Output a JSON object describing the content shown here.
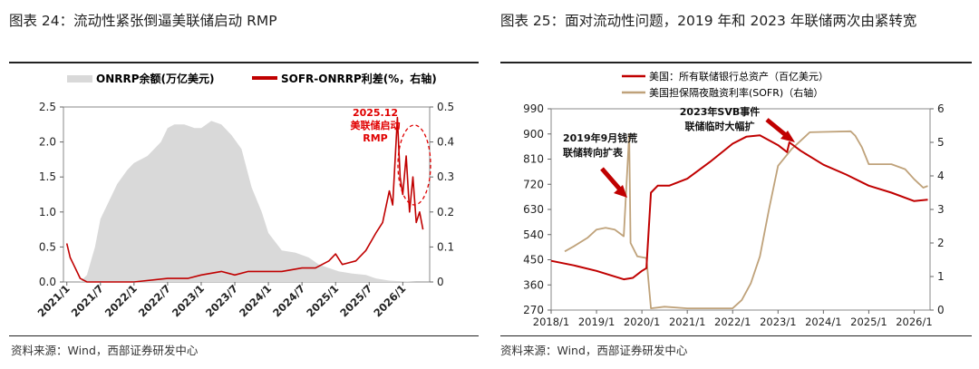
{
  "left": {
    "title": "图表 24：流动性紧张倒逼美联储启动 RMP",
    "source": "资料来源：Wind，西部证券研发中心",
    "chart_data": {
      "type": "area",
      "x_ticks": [
        "2021/1",
        "2021/7",
        "2022/1",
        "2022/7",
        "2023/1",
        "2023/7",
        "2024/1",
        "2024/7",
        "2025/1",
        "2025/7",
        "2026/1"
      ],
      "y_left_ticks": [
        "0.0",
        "0.5",
        "1.0",
        "1.5",
        "2.0",
        "2.5"
      ],
      "y_left_range": [
        0,
        2.5
      ],
      "y_right_ticks": [
        "0",
        "0.1",
        "0.2",
        "0.3",
        "0.4",
        "0.5"
      ],
      "y_right_range": [
        0,
        0.5
      ],
      "legend_position": "top",
      "annotation": [
        "2025.12",
        "美联储启动",
        "RMP"
      ],
      "series": [
        {
          "name": "ONRRP余额(万亿美元)",
          "axis": "left",
          "kind": "area",
          "color": "#d9d9d9",
          "points": [
            [
              2021.0,
              0.0
            ],
            [
              2021.2,
              0.0
            ],
            [
              2021.3,
              0.1
            ],
            [
              2021.42,
              0.5
            ],
            [
              2021.5,
              0.9
            ],
            [
              2021.6,
              1.1
            ],
            [
              2021.75,
              1.4
            ],
            [
              2021.9,
              1.6
            ],
            [
              2022.0,
              1.7
            ],
            [
              2022.2,
              1.8
            ],
            [
              2022.4,
              2.0
            ],
            [
              2022.5,
              2.2
            ],
            [
              2022.6,
              2.25
            ],
            [
              2022.75,
              2.25
            ],
            [
              2022.9,
              2.2
            ],
            [
              2023.0,
              2.2
            ],
            [
              2023.15,
              2.3
            ],
            [
              2023.3,
              2.25
            ],
            [
              2023.45,
              2.1
            ],
            [
              2023.6,
              1.9
            ],
            [
              2023.75,
              1.35
            ],
            [
              2023.9,
              1.0
            ],
            [
              2024.0,
              0.7
            ],
            [
              2024.2,
              0.45
            ],
            [
              2024.4,
              0.42
            ],
            [
              2024.6,
              0.35
            ],
            [
              2024.75,
              0.25
            ],
            [
              2024.9,
              0.2
            ],
            [
              2025.05,
              0.15
            ],
            [
              2025.25,
              0.12
            ],
            [
              2025.45,
              0.1
            ],
            [
              2025.6,
              0.05
            ],
            [
              2025.8,
              0.02
            ],
            [
              2026.2,
              0.0
            ]
          ]
        },
        {
          "name": "SOFR-ONRRP利差(%，右轴)",
          "axis": "right",
          "kind": "line",
          "color": "#c00000",
          "points": [
            [
              2021.0,
              0.11
            ],
            [
              2021.05,
              0.07
            ],
            [
              2021.1,
              0.05
            ],
            [
              2021.15,
              0.03
            ],
            [
              2021.2,
              0.01
            ],
            [
              2021.3,
              0.0
            ],
            [
              2022.0,
              0.0
            ],
            [
              2022.5,
              0.01
            ],
            [
              2022.8,
              0.01
            ],
            [
              2023.0,
              0.02
            ],
            [
              2023.3,
              0.03
            ],
            [
              2023.5,
              0.02
            ],
            [
              2023.7,
              0.03
            ],
            [
              2024.0,
              0.03
            ],
            [
              2024.2,
              0.03
            ],
            [
              2024.5,
              0.04
            ],
            [
              2024.7,
              0.04
            ],
            [
              2024.9,
              0.06
            ],
            [
              2025.0,
              0.08
            ],
            [
              2025.1,
              0.05
            ],
            [
              2025.3,
              0.06
            ],
            [
              2025.45,
              0.09
            ],
            [
              2025.6,
              0.14
            ],
            [
              2025.7,
              0.17
            ],
            [
              2025.8,
              0.26
            ],
            [
              2025.85,
              0.22
            ],
            [
              2025.92,
              0.47
            ],
            [
              2025.96,
              0.3
            ],
            [
              2026.0,
              0.25
            ],
            [
              2026.05,
              0.36
            ],
            [
              2026.1,
              0.2
            ],
            [
              2026.15,
              0.3
            ],
            [
              2026.2,
              0.17
            ],
            [
              2026.25,
              0.2
            ],
            [
              2026.3,
              0.15
            ]
          ]
        }
      ]
    }
  },
  "right": {
    "title": "图表 25：面对流动性问题，2019 年和 2023 年联储两次由紧转宽",
    "source": "资料来源：Wind，西部证券研发中心",
    "chart_data": {
      "type": "line",
      "x_ticks": [
        "2018/1",
        "2019/1",
        "2020/1",
        "2021/1",
        "2022/1",
        "2023/1",
        "2024/1",
        "2025/1",
        "2026/1"
      ],
      "y_left_ticks": [
        "270",
        "360",
        "450",
        "540",
        "630",
        "720",
        "810",
        "900",
        "990"
      ],
      "y_left_range": [
        270,
        990
      ],
      "y_right_ticks": [
        "0",
        "1",
        "2",
        "3",
        "4",
        "5",
        "6"
      ],
      "y_right_range": [
        0,
        6
      ],
      "legend_position": "top",
      "annotations": [
        {
          "lines": [
            "2019年9月钱荒",
            "联储转向扩表"
          ]
        },
        {
          "lines": [
            "2023年SVB事件",
            "联储临时大幅扩"
          ]
        }
      ],
      "series": [
        {
          "name": "美国：所有联储银行总资产（百亿美元）",
          "axis": "left",
          "color": "#c00000",
          "points": [
            [
              2018.0,
              446
            ],
            [
              2018.5,
              430
            ],
            [
              2019.0,
              410
            ],
            [
              2019.6,
              380
            ],
            [
              2019.8,
              385
            ],
            [
              2020.0,
              410
            ],
            [
              2020.1,
              420
            ],
            [
              2020.2,
              690
            ],
            [
              2020.35,
              715
            ],
            [
              2020.6,
              715
            ],
            [
              2021.0,
              740
            ],
            [
              2021.5,
              800
            ],
            [
              2022.0,
              865
            ],
            [
              2022.3,
              890
            ],
            [
              2022.6,
              895
            ],
            [
              2023.0,
              860
            ],
            [
              2023.2,
              835
            ],
            [
              2023.25,
              870
            ],
            [
              2023.5,
              840
            ],
            [
              2024.0,
              790
            ],
            [
              2024.5,
              755
            ],
            [
              2025.0,
              715
            ],
            [
              2025.5,
              690
            ],
            [
              2026.0,
              660
            ],
            [
              2026.3,
              665
            ]
          ]
        },
        {
          "name": "美国担保隔夜融资利率(SOFR)（右轴）",
          "axis": "right",
          "color": "#bfa27a",
          "points": [
            [
              2018.3,
              1.75
            ],
            [
              2018.5,
              1.9
            ],
            [
              2018.8,
              2.15
            ],
            [
              2019.0,
              2.4
            ],
            [
              2019.2,
              2.45
            ],
            [
              2019.4,
              2.4
            ],
            [
              2019.6,
              2.2
            ],
            [
              2019.72,
              5.25
            ],
            [
              2019.75,
              2.0
            ],
            [
              2019.9,
              1.6
            ],
            [
              2020.1,
              1.55
            ],
            [
              2020.2,
              0.05
            ],
            [
              2020.5,
              0.1
            ],
            [
              2021.0,
              0.05
            ],
            [
              2022.0,
              0.05
            ],
            [
              2022.2,
              0.3
            ],
            [
              2022.4,
              0.8
            ],
            [
              2022.6,
              1.6
            ],
            [
              2022.8,
              3.0
            ],
            [
              2023.0,
              4.3
            ],
            [
              2023.3,
              4.8
            ],
            [
              2023.5,
              5.05
            ],
            [
              2023.7,
              5.3
            ],
            [
              2024.0,
              5.31
            ],
            [
              2024.6,
              5.33
            ],
            [
              2024.7,
              5.2
            ],
            [
              2024.85,
              4.85
            ],
            [
              2025.0,
              4.35
            ],
            [
              2025.5,
              4.35
            ],
            [
              2025.8,
              4.2
            ],
            [
              2026.0,
              3.9
            ],
            [
              2026.2,
              3.65
            ],
            [
              2026.3,
              3.7
            ]
          ]
        }
      ]
    }
  }
}
